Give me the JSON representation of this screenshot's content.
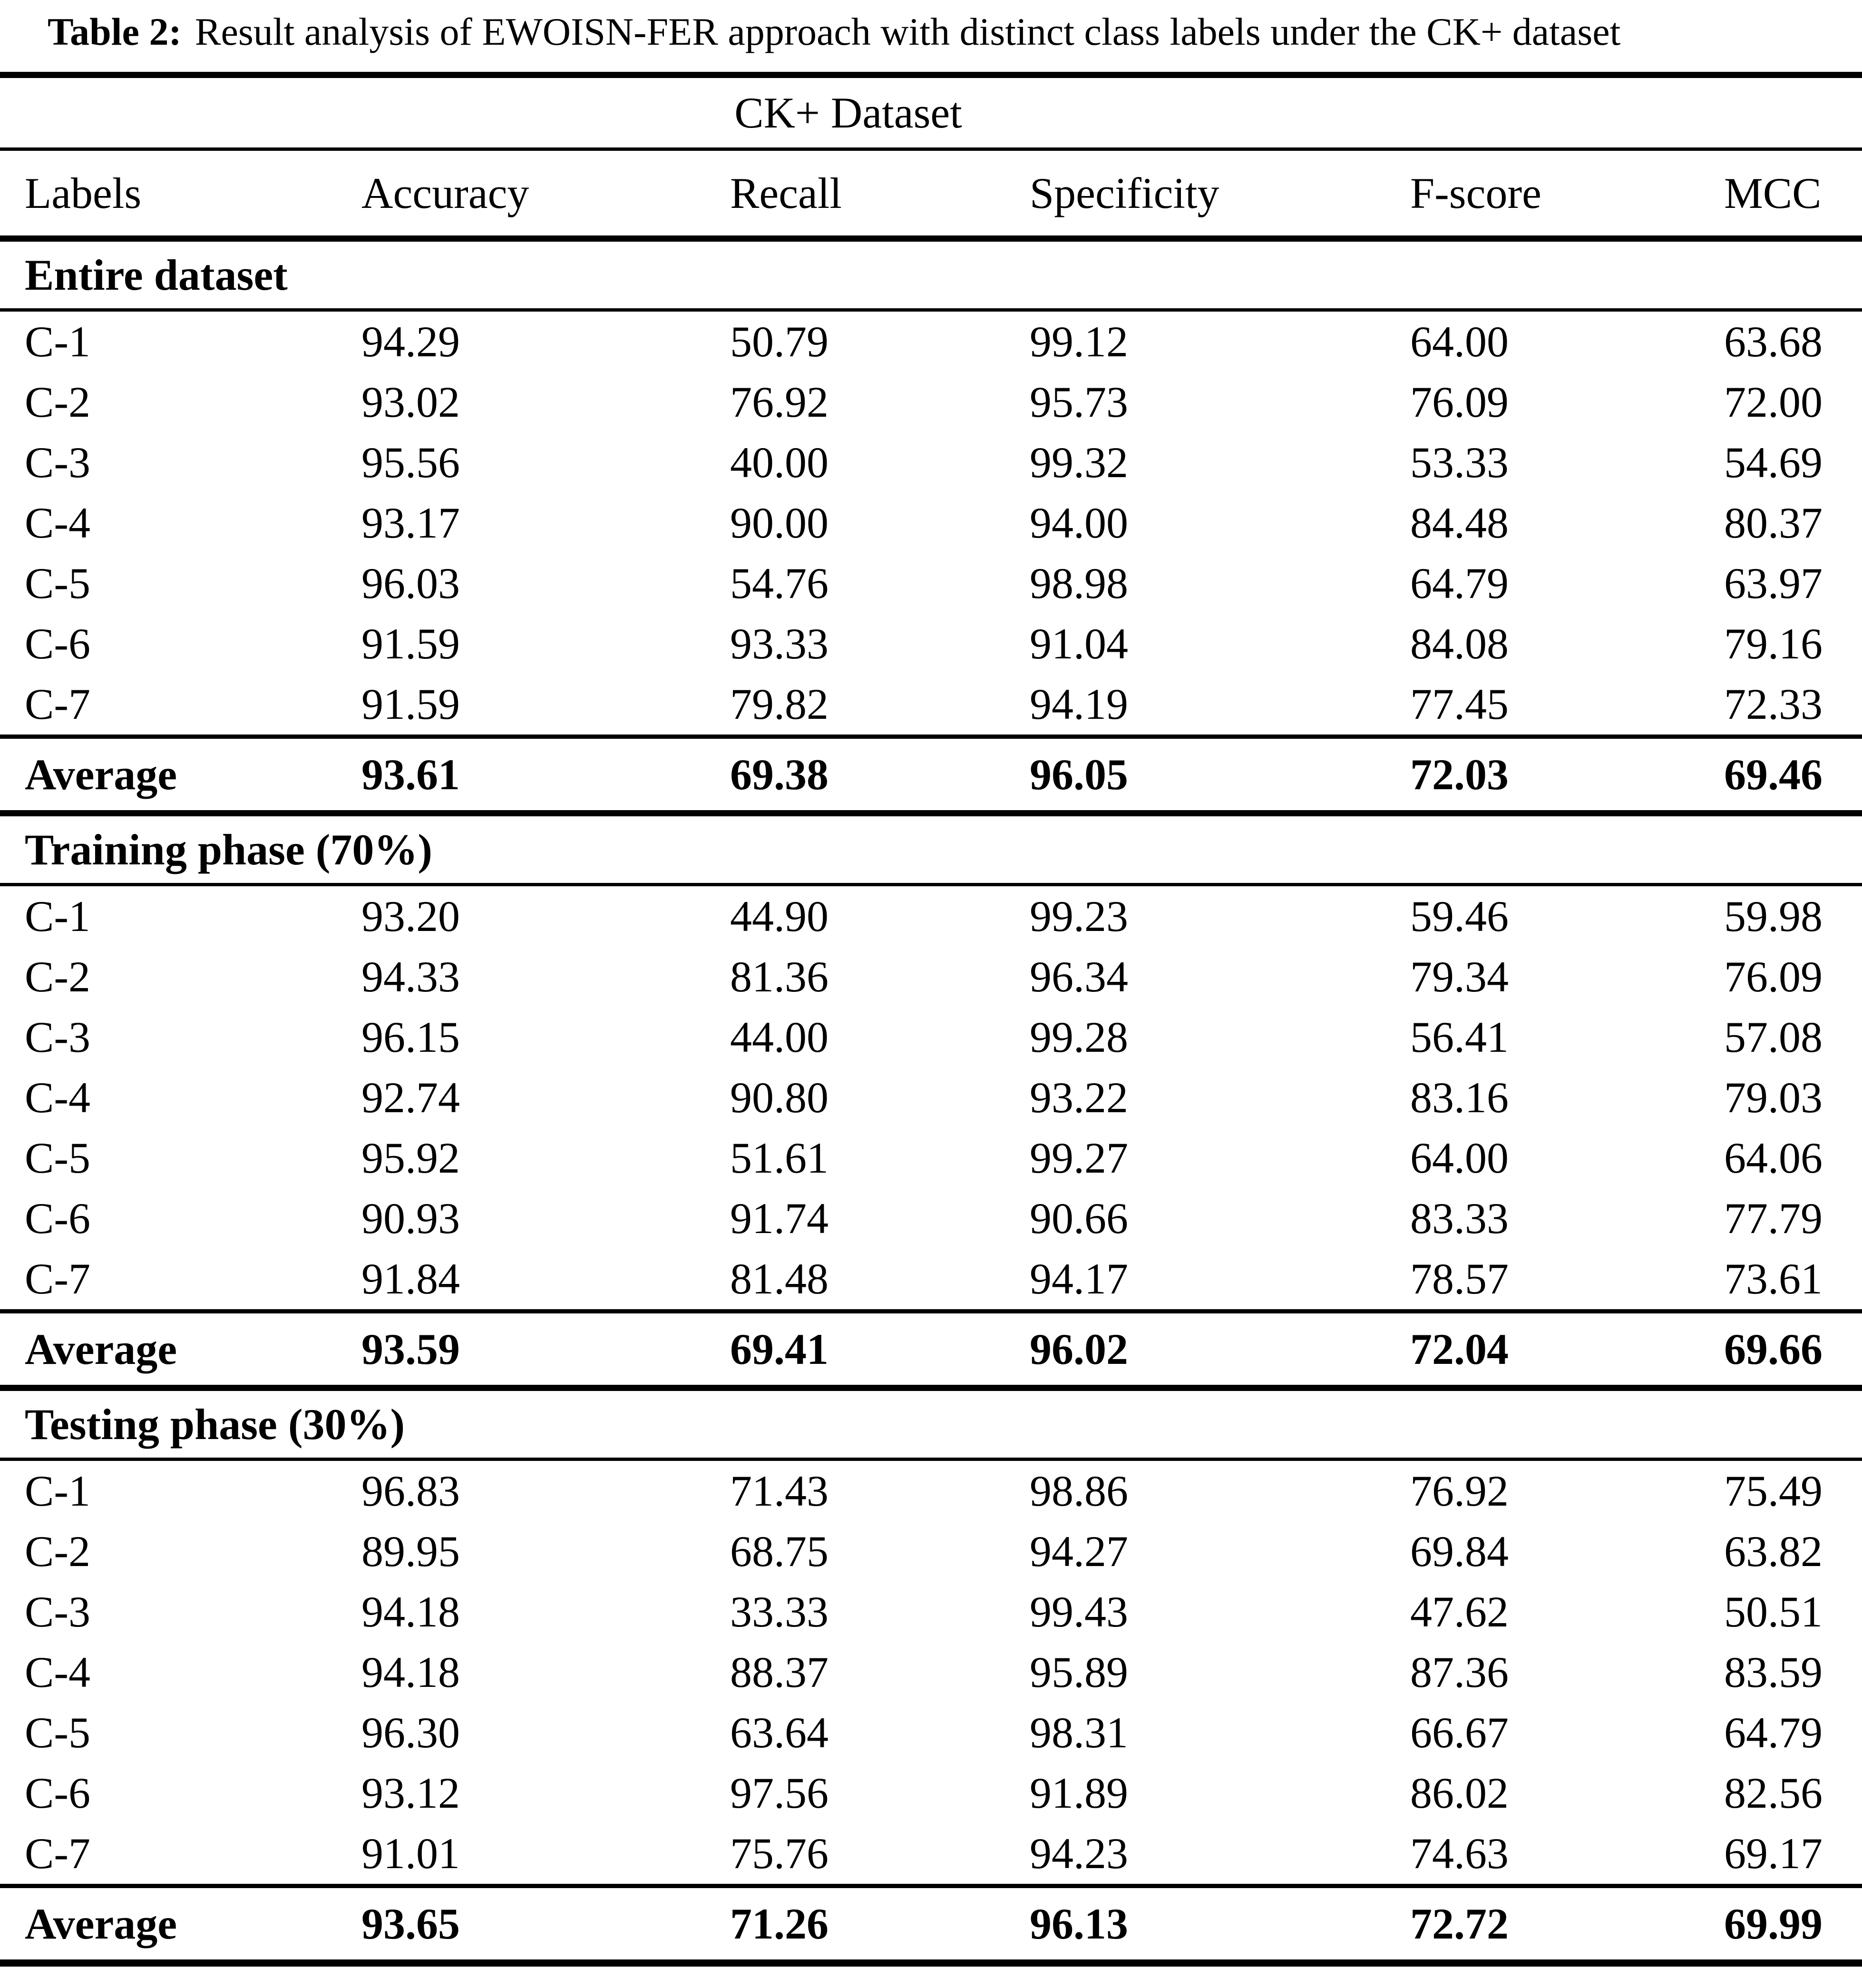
{
  "caption": {
    "label": "Table 2:",
    "text": "Result analysis of EWOISN-FER approach with distinct class labels under the CK+ dataset"
  },
  "colors": {
    "text": "#000000",
    "background": "#ffffff",
    "rules": "#000000"
  },
  "table": {
    "spanning_header": "CK+ Dataset",
    "columns": [
      "Labels",
      "Accuracy",
      "Recall",
      "Specificity",
      "F-score",
      "MCC"
    ],
    "average_label": "Average",
    "sections": [
      {
        "name": "Entire dataset",
        "rows": [
          [
            "C-1",
            "94.29",
            "50.79",
            "99.12",
            "64.00",
            "63.68"
          ],
          [
            "C-2",
            "93.02",
            "76.92",
            "95.73",
            "76.09",
            "72.00"
          ],
          [
            "C-3",
            "95.56",
            "40.00",
            "99.32",
            "53.33",
            "54.69"
          ],
          [
            "C-4",
            "93.17",
            "90.00",
            "94.00",
            "84.48",
            "80.37"
          ],
          [
            "C-5",
            "96.03",
            "54.76",
            "98.98",
            "64.79",
            "63.97"
          ],
          [
            "C-6",
            "91.59",
            "93.33",
            "91.04",
            "84.08",
            "79.16"
          ],
          [
            "C-7",
            "91.59",
            "79.82",
            "94.19",
            "77.45",
            "72.33"
          ]
        ],
        "average": [
          "Average",
          "93.61",
          "69.38",
          "96.05",
          "72.03",
          "69.46"
        ]
      },
      {
        "name": "Training phase (70%)",
        "rows": [
          [
            "C-1",
            "93.20",
            "44.90",
            "99.23",
            "59.46",
            "59.98"
          ],
          [
            "C-2",
            "94.33",
            "81.36",
            "96.34",
            "79.34",
            "76.09"
          ],
          [
            "C-3",
            "96.15",
            "44.00",
            "99.28",
            "56.41",
            "57.08"
          ],
          [
            "C-4",
            "92.74",
            "90.80",
            "93.22",
            "83.16",
            "79.03"
          ],
          [
            "C-5",
            "95.92",
            "51.61",
            "99.27",
            "64.00",
            "64.06"
          ],
          [
            "C-6",
            "90.93",
            "91.74",
            "90.66",
            "83.33",
            "77.79"
          ],
          [
            "C-7",
            "91.84",
            "81.48",
            "94.17",
            "78.57",
            "73.61"
          ]
        ],
        "average": [
          "Average",
          "93.59",
          "69.41",
          "96.02",
          "72.04",
          "69.66"
        ]
      },
      {
        "name": "Testing phase (30%)",
        "rows": [
          [
            "C-1",
            "96.83",
            "71.43",
            "98.86",
            "76.92",
            "75.49"
          ],
          [
            "C-2",
            "89.95",
            "68.75",
            "94.27",
            "69.84",
            "63.82"
          ],
          [
            "C-3",
            "94.18",
            "33.33",
            "99.43",
            "47.62",
            "50.51"
          ],
          [
            "C-4",
            "94.18",
            "88.37",
            "95.89",
            "87.36",
            "83.59"
          ],
          [
            "C-5",
            "96.30",
            "63.64",
            "98.31",
            "66.67",
            "64.79"
          ],
          [
            "C-6",
            "93.12",
            "97.56",
            "91.89",
            "86.02",
            "82.56"
          ],
          [
            "C-7",
            "91.01",
            "75.76",
            "94.23",
            "74.63",
            "69.17"
          ]
        ],
        "average": [
          "Average",
          "93.65",
          "71.26",
          "96.13",
          "72.72",
          "69.99"
        ]
      }
    ]
  }
}
